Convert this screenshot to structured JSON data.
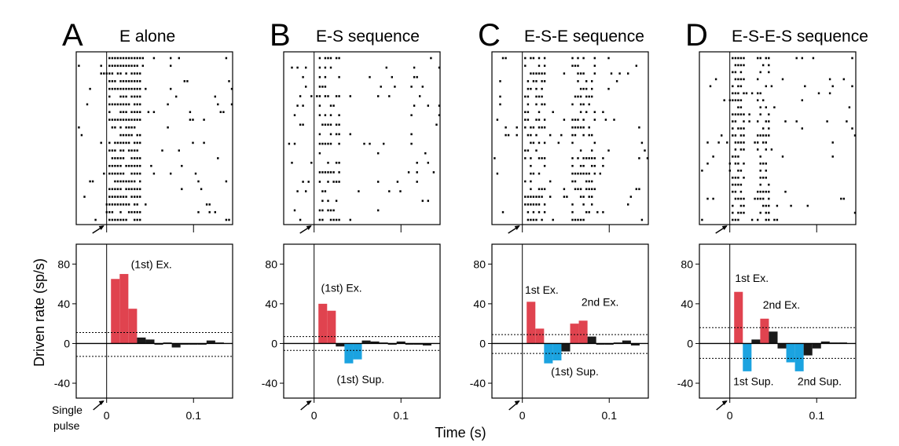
{
  "figure": {
    "y_axis_label": "Driven rate (sp/s)",
    "x_axis_label": "Time (s)",
    "stim_label_line1": "Single",
    "stim_label_line2": "pulse"
  },
  "colors": {
    "excitation": "#e0434f",
    "suppression": "#1ba3e0",
    "other": "#1a1a1a"
  },
  "chart_data": [
    {
      "type": "bar",
      "letter": "A",
      "title": "E  alone",
      "xlim": [
        -0.035,
        0.145
      ],
      "ylim": [
        -55,
        100
      ],
      "x_ticks": [
        0,
        0.1
      ],
      "x_tick_labels": [
        "0",
        "0.1"
      ],
      "y_ticks": [
        -40,
        0,
        40,
        80
      ],
      "y_tick_labels": [
        "-40",
        "0",
        "40",
        "80"
      ],
      "bin_width": 0.01,
      "bin_starts": [
        0.005,
        0.015,
        0.025,
        0.035,
        0.045,
        0.055,
        0.065,
        0.075,
        0.085,
        0.095,
        0.105,
        0.115,
        0.125
      ],
      "rates": [
        65,
        70,
        35,
        6,
        4,
        -1,
        1,
        -4,
        0,
        0,
        0,
        3,
        1
      ],
      "kind": [
        "ex",
        "ex",
        "ex",
        "o",
        "o",
        "o",
        "o",
        "o",
        "o",
        "o",
        "o",
        "o",
        "o"
      ],
      "threshold_upper": 11,
      "threshold_lower": -13,
      "annotations": [
        {
          "text": "(1st) Ex.",
          "x": 0.028,
          "y": 76
        }
      ],
      "raster": {
        "rows": 22,
        "onset": [
          0,
          0.04
        ],
        "density": 0.8,
        "bg_density": 0.07,
        "seed": 11
      }
    },
    {
      "type": "bar",
      "letter": "B",
      "title": "E-S sequence",
      "xlim": [
        -0.035,
        0.145
      ],
      "ylim": [
        -55,
        100
      ],
      "x_ticks": [
        0,
        0.1
      ],
      "x_tick_labels": [
        "0",
        "0.1"
      ],
      "y_ticks": [
        -40,
        0,
        40,
        80
      ],
      "y_tick_labels": [
        "-40",
        "0",
        "40",
        "80"
      ],
      "bin_width": 0.01,
      "bin_starts": [
        0.005,
        0.015,
        0.025,
        0.035,
        0.045,
        0.055,
        0.065,
        0.075,
        0.085,
        0.095,
        0.105,
        0.115,
        0.125
      ],
      "rates": [
        40,
        33,
        -3,
        -20,
        -16,
        3,
        2,
        1,
        -1,
        2,
        -1,
        0,
        -2
      ],
      "kind": [
        "ex",
        "ex",
        "o",
        "sup",
        "sup",
        "o",
        "o",
        "o",
        "o",
        "o",
        "o",
        "o",
        "o"
      ],
      "threshold_upper": 7,
      "threshold_lower": -7,
      "annotations": [
        {
          "text": "(1st) Ex.",
          "x": 0.008,
          "y": 52
        },
        {
          "text": "(1st) Sup.",
          "x": 0.026,
          "y": -40
        }
      ],
      "raster": {
        "rows": 18,
        "onset": [
          0.003,
          0.03
        ],
        "density": 0.55,
        "bg_density": 0.07,
        "seed": 23
      }
    },
    {
      "type": "bar",
      "letter": "C",
      "title": "E-S-E sequence",
      "xlim": [
        -0.035,
        0.145
      ],
      "ylim": [
        -55,
        100
      ],
      "x_ticks": [
        0,
        0.1
      ],
      "x_tick_labels": [
        "0",
        "0.1"
      ],
      "y_ticks": [
        -40,
        0,
        40,
        80
      ],
      "y_tick_labels": [
        "-40",
        "0",
        "40",
        "80"
      ],
      "bin_width": 0.01,
      "bin_starts": [
        0.005,
        0.015,
        0.025,
        0.035,
        0.045,
        0.055,
        0.065,
        0.075,
        0.085,
        0.095,
        0.105,
        0.115,
        0.125
      ],
      "rates": [
        42,
        15,
        -20,
        -17,
        -8,
        20,
        23,
        7,
        0,
        0,
        1,
        3,
        -2
      ],
      "kind": [
        "ex",
        "ex",
        "sup",
        "sup",
        "o",
        "ex",
        "ex",
        "o",
        "o",
        "o",
        "o",
        "o",
        "o"
      ],
      "threshold_upper": 9,
      "threshold_lower": -10,
      "annotations": [
        {
          "text": "1st Ex.",
          "x": 0.003,
          "y": 50
        },
        {
          "text": "2nd Ex.",
          "x": 0.068,
          "y": 38
        },
        {
          "text": "(1st) Sup.",
          "x": 0.033,
          "y": -32
        }
      ],
      "raster": {
        "rows": 22,
        "onset": [
          0,
          0.025
        ],
        "density": 0.6,
        "bg_density": 0.06,
        "seed": 37,
        "second": [
          0.055,
          0.085
        ]
      }
    },
    {
      "type": "bar",
      "letter": "D",
      "title": "E-S-E-S sequence",
      "xlim": [
        -0.035,
        0.145
      ],
      "ylim": [
        -55,
        100
      ],
      "x_ticks": [
        0,
        0.1
      ],
      "x_tick_labels": [
        "0",
        "0.1"
      ],
      "y_ticks": [
        -40,
        0,
        40,
        80
      ],
      "y_tick_labels": [
        "-40",
        "0",
        "40",
        "80"
      ],
      "bin_width": 0.01,
      "bin_starts": [
        0.005,
        0.015,
        0.025,
        0.035,
        0.045,
        0.055,
        0.065,
        0.075,
        0.085,
        0.095,
        0.105,
        0.115,
        0.125
      ],
      "rates": [
        52,
        -28,
        4,
        25,
        12,
        -5,
        -19,
        -28,
        -12,
        -5,
        2,
        1,
        1
      ],
      "kind": [
        "ex",
        "sup",
        "o",
        "ex",
        "o",
        "o",
        "sup",
        "sup",
        "o",
        "o",
        "o",
        "o",
        "o"
      ],
      "threshold_upper": 16,
      "threshold_lower": -15,
      "annotations": [
        {
          "text": "1st Ex.",
          "x": 0.006,
          "y": 62
        },
        {
          "text": "2nd Ex.",
          "x": 0.038,
          "y": 35
        },
        {
          "text": "1st Sup.",
          "x": 0.004,
          "y": -42
        },
        {
          "text": "2nd Sup.",
          "x": 0.078,
          "y": -42
        }
      ],
      "raster": {
        "rows": 24,
        "onset": [
          0,
          0.018
        ],
        "density": 0.7,
        "bg_density": 0.07,
        "seed": 53,
        "second": [
          0.03,
          0.045
        ]
      }
    }
  ]
}
